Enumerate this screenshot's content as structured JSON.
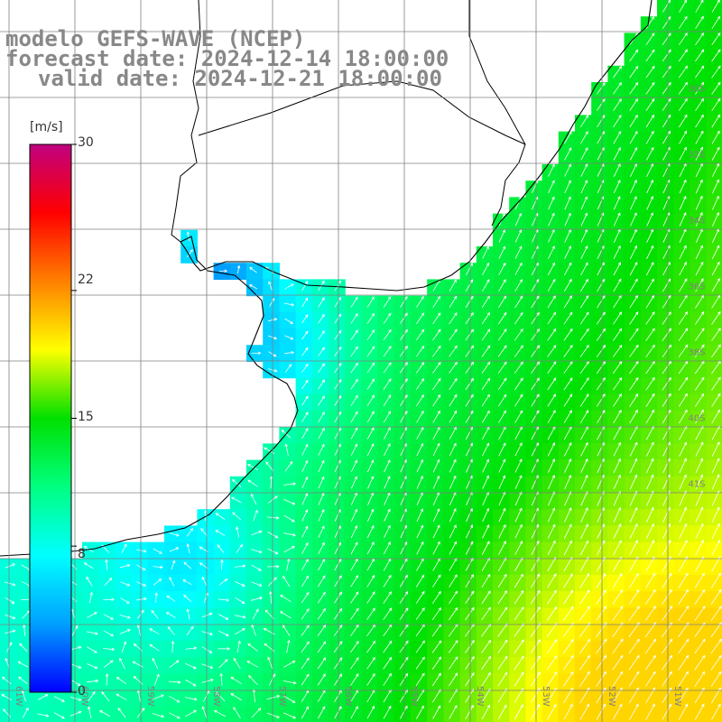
{
  "titles": {
    "model": "modelo GEFS-WAVE (NCEP)",
    "forecast": "forecast date: 2024-12-14 18:00:00",
    "valid": "valid date: 2024-12-21 18:00:00"
  },
  "colorbar": {
    "unit": "[m/s]",
    "ticks": [
      "30",
      "22",
      "15",
      "8",
      "0"
    ],
    "tick_values": [
      30,
      22,
      15,
      8,
      0
    ],
    "min": 0,
    "max": 30,
    "colors": [
      "#0000ff",
      "#00a0ff",
      "#00ffff",
      "#00ff80",
      "#00e000",
      "#ffff00",
      "#ff8000",
      "#ff0000",
      "#c00080"
    ]
  },
  "grid": {
    "lon_labels": [
      "61W",
      "60W",
      "59W",
      "58W",
      "57W",
      "56W",
      "55W",
      "54W",
      "53W",
      "52W",
      "51W"
    ],
    "lat_labels": [
      "30S",
      "32S",
      "34S",
      "36S",
      "38S",
      "40S",
      "41S"
    ],
    "lon_min": -61.5,
    "lon_max": -50.5,
    "lat_min": -41.5,
    "lat_max": -30.5
  },
  "colors": {
    "land": "#ffffff",
    "coast": "#000000",
    "grid": "#808080",
    "arrow": "#ffffff",
    "title": "#888888"
  }
}
